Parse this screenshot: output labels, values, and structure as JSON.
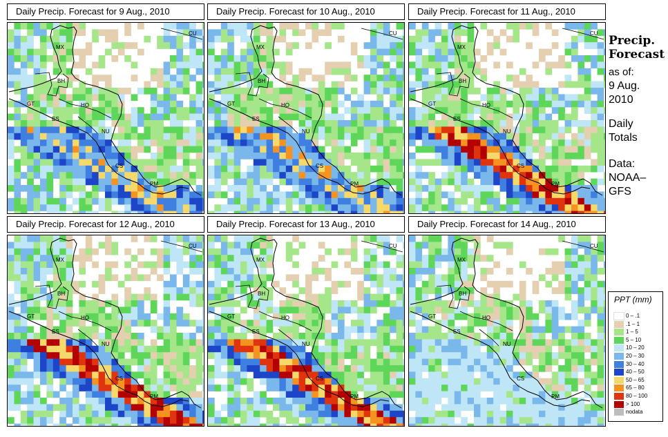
{
  "panels": [
    {
      "title": "Daily Precip. Forecast for  9 Aug., 2010",
      "seed": 11,
      "profile": "a"
    },
    {
      "title": "Daily Precip. Forecast for  10 Aug., 2010",
      "seed": 23,
      "profile": "b"
    },
    {
      "title": "Daily Precip. Forecast for  11 Aug., 2010",
      "seed": 37,
      "profile": "c"
    },
    {
      "title": "Daily Precip. Forecast for  12 Aug., 2010",
      "seed": 41,
      "profile": "d"
    },
    {
      "title": "Daily Precip. Forecast for  13 Aug., 2010",
      "seed": 53,
      "profile": "e"
    },
    {
      "title": "Daily Precip. Forecast for  14 Aug., 2010",
      "seed": 67,
      "profile": "f"
    }
  ],
  "country_labels": [
    "MX",
    "CU",
    "BH",
    "GT",
    "HO",
    "ES",
    "NU",
    "CS",
    "PM"
  ],
  "side": {
    "title_line1": "Precip.",
    "title_line2": "Forecast",
    "asof": "as of:",
    "date_line1": "9 Aug.",
    "date_line2": "2010",
    "totals_line1": "Daily",
    "totals_line2": "Totals",
    "data_line1": "Data:",
    "data_line2": "NOAA–",
    "data_line3": "GFS"
  },
  "legend": {
    "title": "PPT (mm)",
    "items": [
      {
        "label": "0 – .1",
        "color": "#ffffff"
      },
      {
        "label": ".1 – 1",
        "color": "#e4cfb0"
      },
      {
        "label": "1 – 5",
        "color": "#a6e68a"
      },
      {
        "label": "5 – 10",
        "color": "#5ed65a"
      },
      {
        "label": "10 – 20",
        "color": "#bfe6f7"
      },
      {
        "label": "20 – 30",
        "color": "#7ab8ec"
      },
      {
        "label": "30 – 40",
        "color": "#3f7fe0"
      },
      {
        "label": "40 – 50",
        "color": "#1d45c8"
      },
      {
        "label": "50 – 65",
        "color": "#f6d96a"
      },
      {
        "label": "65 – 80",
        "color": "#f59320"
      },
      {
        "label": "80 – 100",
        "color": "#e0340f"
      },
      {
        "label": "> 100",
        "color": "#b30000"
      },
      {
        "label": "nodata",
        "color": "#bdbdbd"
      }
    ]
  }
}
